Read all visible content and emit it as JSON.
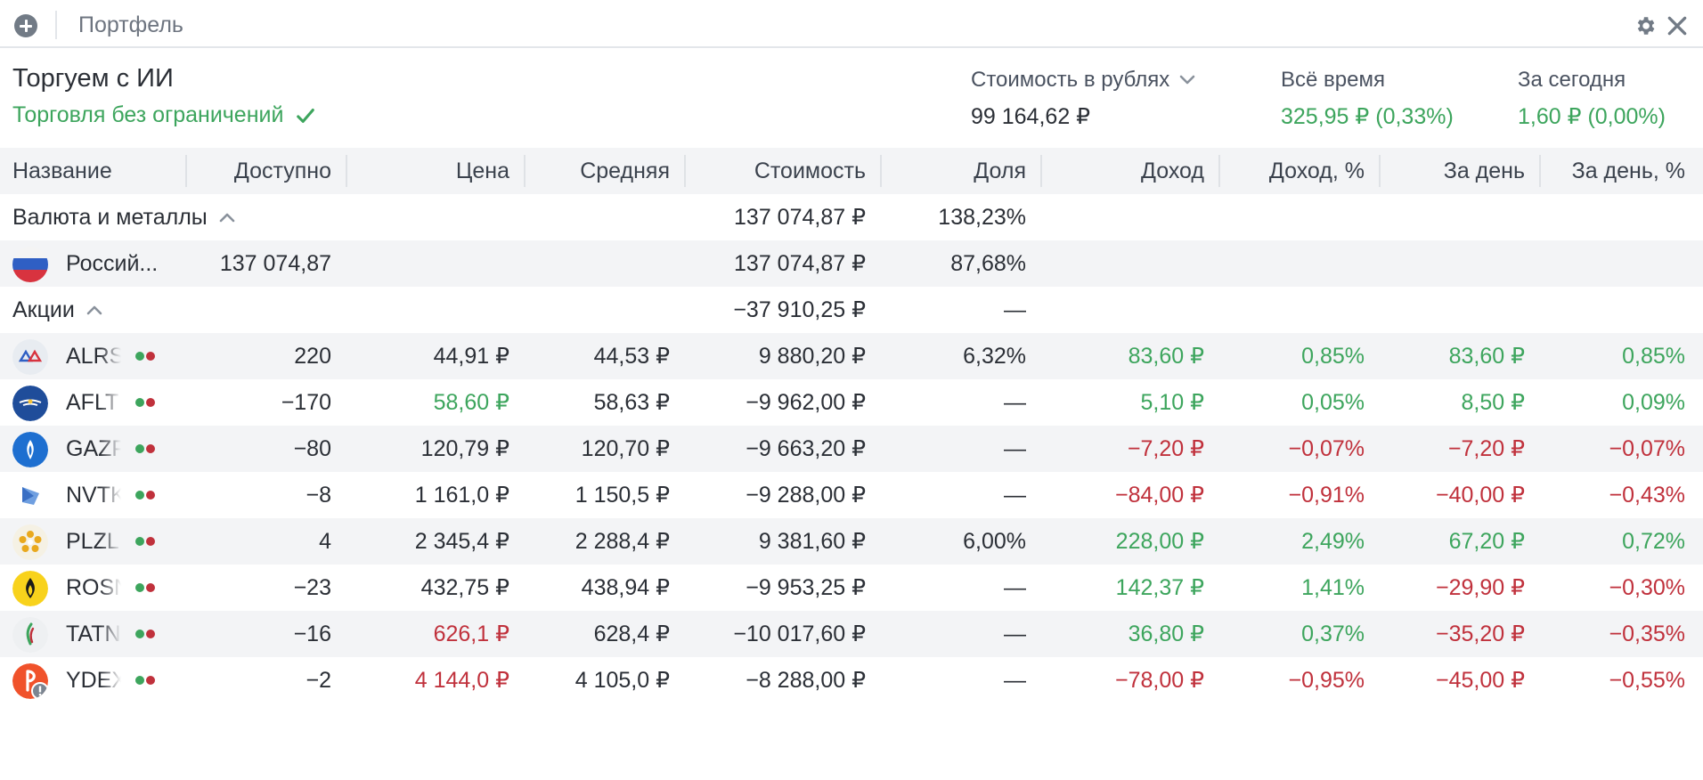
{
  "window": {
    "title": "Портфель"
  },
  "account": {
    "name": "Торгуем с ИИ",
    "status": "Торговля без ограничений"
  },
  "summary": {
    "value_label": "Стоимость в рублях",
    "value": "99 164,62 ₽",
    "alltime_label": "Всё время",
    "alltime_value": "325,95 ₽ (0,33%)",
    "today_label": "За сегодня",
    "today_value": "1,60 ₽ (0,00%)"
  },
  "columns": {
    "name": "Название",
    "available": "Доступно",
    "price": "Цена",
    "average": "Средняя",
    "cost": "Стоимость",
    "share": "Доля",
    "income": "Доход",
    "income_pct": "Доход, %",
    "day": "За день",
    "day_pct": "За день, %"
  },
  "groups": {
    "currency": {
      "name": "Валюта и металлы",
      "cost": "137 074,87 ₽",
      "share": "138,23%"
    },
    "stocks": {
      "name": "Акции",
      "cost": "−37 910,25 ₽",
      "share": "—"
    }
  },
  "currency_row": {
    "name": "Россий...",
    "available": "137 074,87",
    "cost": "137 074,87 ₽",
    "share": "87,68%"
  },
  "stocks": [
    {
      "ticker": "ALRS",
      "logo": "alrosa-logo",
      "available": "220",
      "price": "44,91 ₽",
      "price_color": "dark",
      "average": "44,53 ₽",
      "cost": "9 880,20 ₽",
      "share": "6,32%",
      "income": "83,60 ₽",
      "income_pct": "0,85%",
      "day": "83,60 ₽",
      "day_pct": "0,85%",
      "income_color": "green",
      "day_color": "green"
    },
    {
      "ticker": "AFLT",
      "logo": "aeroflot-logo",
      "available": "−170",
      "price": "58,60 ₽",
      "price_color": "green",
      "average": "58,63 ₽",
      "cost": "−9 962,00 ₽",
      "share": "—",
      "income": "5,10 ₽",
      "income_pct": "0,05%",
      "day": "8,50 ₽",
      "day_pct": "0,09%",
      "income_color": "green",
      "day_color": "green"
    },
    {
      "ticker": "GAZP",
      "logo": "gazprom-logo",
      "available": "−80",
      "price": "120,79 ₽",
      "price_color": "dark",
      "average": "120,70 ₽",
      "cost": "−9 663,20 ₽",
      "share": "—",
      "income": "−7,20 ₽",
      "income_pct": "−0,07%",
      "day": "−7,20 ₽",
      "day_pct": "−0,07%",
      "income_color": "red",
      "day_color": "red"
    },
    {
      "ticker": "NVTK",
      "logo": "novatek-logo",
      "available": "−8",
      "price": "1 161,0 ₽",
      "price_color": "dark",
      "average": "1 150,5 ₽",
      "cost": "−9 288,00 ₽",
      "share": "—",
      "income": "−84,00 ₽",
      "income_pct": "−0,91%",
      "day": "−40,00 ₽",
      "day_pct": "−0,43%",
      "income_color": "red",
      "day_color": "red"
    },
    {
      "ticker": "PLZL",
      "logo": "polyus-logo",
      "available": "4",
      "price": "2 345,4 ₽",
      "price_color": "dark",
      "average": "2 288,4 ₽",
      "cost": "9 381,60 ₽",
      "share": "6,00%",
      "income": "228,00 ₽",
      "income_pct": "2,49%",
      "day": "67,20 ₽",
      "day_pct": "0,72%",
      "income_color": "green",
      "day_color": "green"
    },
    {
      "ticker": "ROSN",
      "logo": "rosneft-logo",
      "available": "−23",
      "price": "432,75 ₽",
      "price_color": "dark",
      "average": "438,94 ₽",
      "cost": "−9 953,25 ₽",
      "share": "—",
      "income": "142,37 ₽",
      "income_pct": "1,41%",
      "day": "−29,90 ₽",
      "day_pct": "−0,30%",
      "income_color": "green",
      "day_color": "red"
    },
    {
      "ticker": "TATN",
      "logo": "tatneft-logo",
      "available": "−16",
      "price": "626,1 ₽",
      "price_color": "red",
      "average": "628,4 ₽",
      "cost": "−10 017,60 ₽",
      "share": "—",
      "income": "36,80 ₽",
      "income_pct": "0,37%",
      "day": "−35,20 ₽",
      "day_pct": "−0,35%",
      "income_color": "green",
      "day_color": "red"
    },
    {
      "ticker": "YDEX",
      "logo": "yandex-logo",
      "available": "−2",
      "price": "4 144,0 ₽",
      "price_color": "red",
      "average": "4 105,0 ₽",
      "cost": "−8 288,00 ₽",
      "share": "—",
      "income": "−78,00 ₽",
      "income_pct": "−0,95%",
      "day": "−45,00 ₽",
      "day_pct": "−0,55%",
      "income_color": "red",
      "day_color": "red"
    }
  ],
  "colors": {
    "green": "#3da55d",
    "red": "#c0313c",
    "header_bg": "#f3f4f6"
  }
}
